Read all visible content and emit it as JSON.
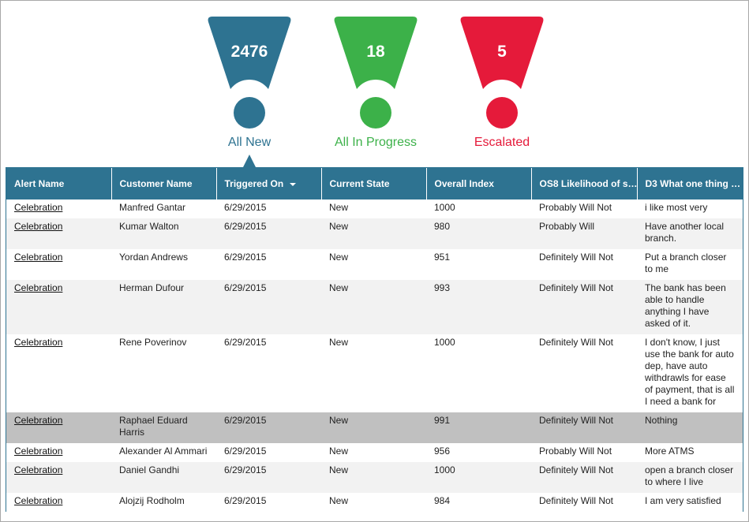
{
  "indicators": [
    {
      "count": 2476,
      "label": "All New",
      "color": "#2e7391"
    },
    {
      "count": 18,
      "label": "All In Progress",
      "color": "#3cb149"
    },
    {
      "count": 5,
      "label": "Escalated",
      "color": "#e51a3a"
    }
  ],
  "table": {
    "headers": [
      "Alert Name",
      "Customer Name",
      "Triggered On",
      "Current State",
      "Overall Index",
      "OS8 Likelihood of s…",
      "D3 What one thing …"
    ],
    "rows": [
      [
        "Celebration",
        "Manfred Gantar",
        "6/29/2015",
        "New",
        1000,
        "Probably Will Not",
        "i like most very"
      ],
      [
        "Celebration",
        "Kumar Walton",
        "6/29/2015",
        "New",
        980,
        "Probably Will",
        "Have another local branch."
      ],
      [
        "Celebration",
        "Yordan Andrews",
        "6/29/2015",
        "New",
        951,
        "Definitely Will Not",
        "Put a branch closer to me"
      ],
      [
        "Celebration",
        "Herman Dufour",
        "6/29/2015",
        "New",
        993,
        "Definitely Will Not",
        "The bank has been able to handle anything I have asked of it."
      ],
      [
        "Celebration",
        "Rene Poverinov",
        "6/29/2015",
        "New",
        1000,
        "Definitely Will Not",
        "I don't know, I just use the bank for auto dep, have auto withdrawls for ease of payment, that is all I need a bank for"
      ],
      [
        "Celebration",
        "Raphael Eduard Harris",
        "6/29/2015",
        "New",
        991,
        "Definitely Will Not",
        "Nothing"
      ],
      [
        "Celebration",
        "Alexander Al Ammari",
        "6/29/2015",
        "New",
        956,
        "Probably Will Not",
        "More ATMS"
      ],
      [
        "Celebration",
        "Daniel Gandhi",
        "6/29/2015",
        "New",
        1000,
        "Definitely Will Not",
        "open a branch closer to where I live"
      ],
      [
        "Celebration",
        "Alojzij Rodholm",
        "6/29/2015",
        "New",
        984,
        "Definitely Will Not",
        "I am very satisfied"
      ]
    ]
  }
}
